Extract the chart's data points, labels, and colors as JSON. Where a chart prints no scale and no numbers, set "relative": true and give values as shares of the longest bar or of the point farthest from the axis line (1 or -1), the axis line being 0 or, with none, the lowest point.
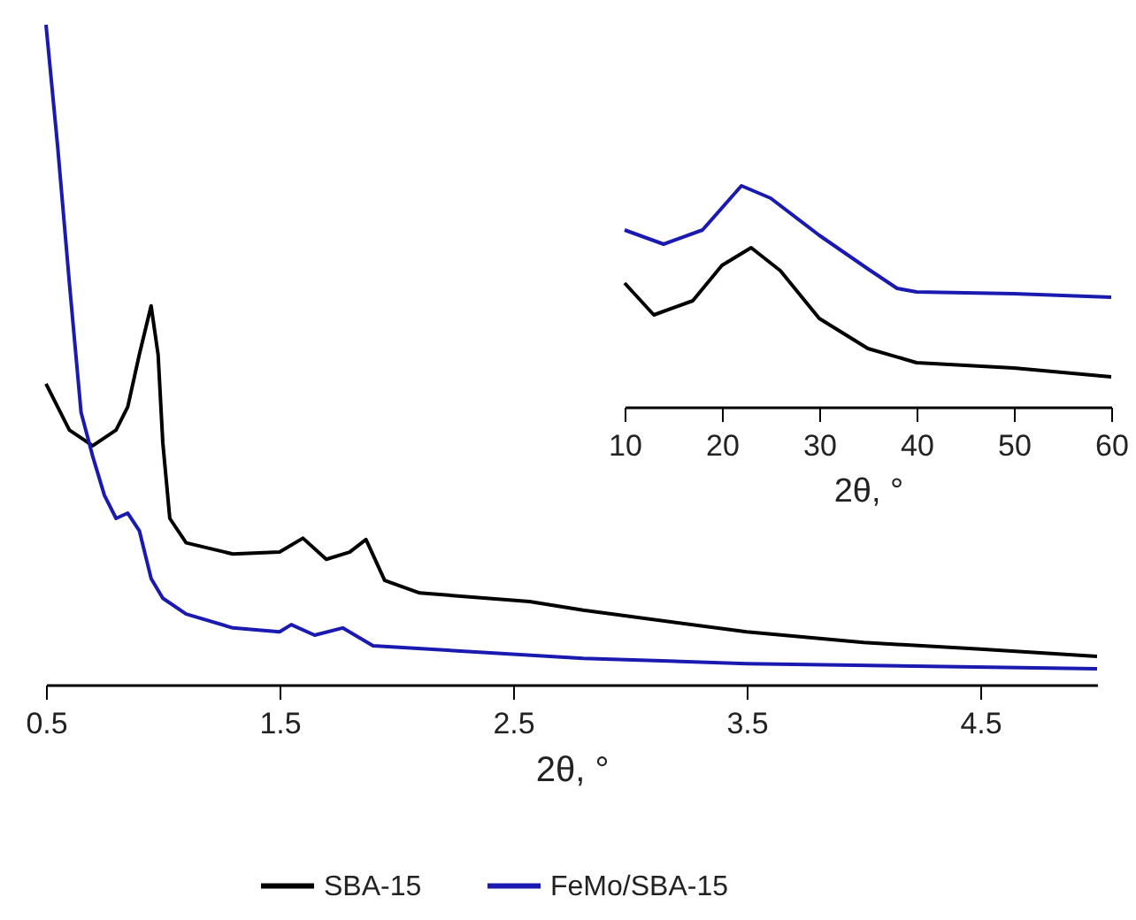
{
  "chart_data": [
    {
      "type": "line",
      "xlabel": "2θ, °",
      "relative": true,
      "xlim": [
        0.5,
        5
      ],
      "xticks": [
        0.5,
        1.5,
        2.5,
        3.5,
        4.5
      ],
      "legend": "bottom",
      "series": [
        {
          "name": "SBA-15",
          "color": "#000000",
          "x": [
            0.5,
            0.6,
            0.7,
            0.8,
            0.85,
            0.9,
            0.95,
            0.98,
            1.0,
            1.03,
            1.1,
            1.3,
            1.5,
            1.6,
            1.7,
            1.8,
            1.87,
            1.95,
            2.1,
            2.57,
            2.8,
            3.5,
            4.0,
            4.5,
            5.0
          ],
          "values": [
            0.456,
            0.386,
            0.362,
            0.386,
            0.421,
            0.501,
            0.574,
            0.5,
            0.367,
            0.252,
            0.215,
            0.198,
            0.201,
            0.222,
            0.19,
            0.201,
            0.22,
            0.158,
            0.139,
            0.126,
            0.113,
            0.08,
            0.064,
            0.054,
            0.043
          ]
        },
        {
          "name": "FeMo/SBA-15",
          "color": "#1a1ab0",
          "x": [
            0.5,
            0.55,
            0.6,
            0.65,
            0.7,
            0.75,
            0.8,
            0.85,
            0.9,
            0.95,
            1.0,
            1.1,
            1.3,
            1.5,
            1.55,
            1.65,
            1.77,
            1.9,
            2.8,
            3.5,
            5.0
          ],
          "values": [
            1.0,
            0.815,
            0.609,
            0.413,
            0.346,
            0.287,
            0.252,
            0.26,
            0.233,
            0.161,
            0.131,
            0.107,
            0.086,
            0.08,
            0.091,
            0.075,
            0.086,
            0.059,
            0.04,
            0.032,
            0.024
          ]
        }
      ]
    },
    {
      "type": "line",
      "xlabel": "2θ, °",
      "relative": true,
      "xlim": [
        10,
        60
      ],
      "xticks": [
        10,
        20,
        30,
        40,
        50,
        60
      ],
      "series": [
        {
          "color": "#1a1ab0",
          "x": [
            10,
            14,
            18,
            22,
            25,
            30,
            35,
            38,
            40,
            50,
            60
          ],
          "values": [
            0.8,
            0.736,
            0.8,
            1.0,
            0.944,
            0.776,
            0.624,
            0.536,
            0.52,
            0.512,
            0.496
          ]
        },
        {
          "color": "#000000",
          "x": [
            10,
            13,
            17,
            20,
            23,
            26,
            30,
            35,
            40,
            50,
            60
          ],
          "values": [
            0.56,
            0.416,
            0.48,
            0.64,
            0.72,
            0.616,
            0.4,
            0.264,
            0.2,
            0.176,
            0.136
          ]
        }
      ]
    }
  ]
}
